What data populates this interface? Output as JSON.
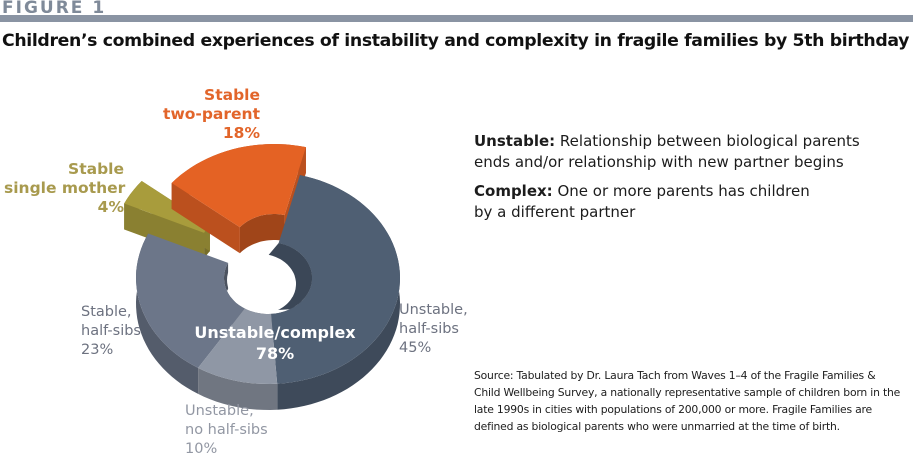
{
  "header": {
    "figure_label": "FIGURE 1",
    "title": "Children’s combined experiences of instability and complexity in fragile families by 5th birthday"
  },
  "definitions": [
    {
      "term": "Unstable:",
      "lines": [
        "Relationship between biological parents",
        "ends and/or relationship with new partner begins"
      ]
    },
    {
      "term": "Complex:",
      "lines": [
        "One or more parents has children",
        "by a different partner"
      ]
    }
  ],
  "source": {
    "lines": [
      "Source: Tabulated by Dr. Laura Tach from Waves 1–4 of the Fragile Families &",
      "Child Wellbeing Survey, a nationally representative sample of children born in the",
      "late 1990s in cities with populations of 200,000 or more. Fragile Families are",
      "defined as biological parents who were unmarried at the time of birth."
    ]
  },
  "chart_data": {
    "type": "pie",
    "title": "Children’s combined experiences of instability and complexity in fragile families by 5th birthday",
    "style": "3d-donut",
    "unit": "%",
    "slices": [
      {
        "name": "Unstable, half-sibs",
        "label_lines": [
          "Unstable,",
          "half-sibs",
          "45%"
        ],
        "value": 45,
        "color": "#4f5f73",
        "exploded": false,
        "group": "Unstable/complex"
      },
      {
        "name": "Unstable, no half-sibs",
        "label_lines": [
          "Unstable,",
          "no half-sibs",
          "10%"
        ],
        "value": 10,
        "color": "#8f97a5",
        "exploded": false,
        "group": "Unstable/complex"
      },
      {
        "name": "Stable, half-sibs",
        "label_lines": [
          "Stable,",
          "half-sibs",
          "23%"
        ],
        "value": 23,
        "color": "#6c7689",
        "exploded": false,
        "group": "Unstable/complex"
      },
      {
        "name": "Stable single mother",
        "label_lines": [
          "Stable",
          "single mother",
          "4%"
        ],
        "value": 4,
        "color": "#a89c3c",
        "exploded": true
      },
      {
        "name": "Stable two-parent",
        "label_lines": [
          "Stable",
          "two-parent",
          "18%"
        ],
        "value": 18,
        "color": "#e46224",
        "exploded": true
      }
    ],
    "group_annotation": {
      "label": "Unstable/complex",
      "value": "78%"
    }
  }
}
